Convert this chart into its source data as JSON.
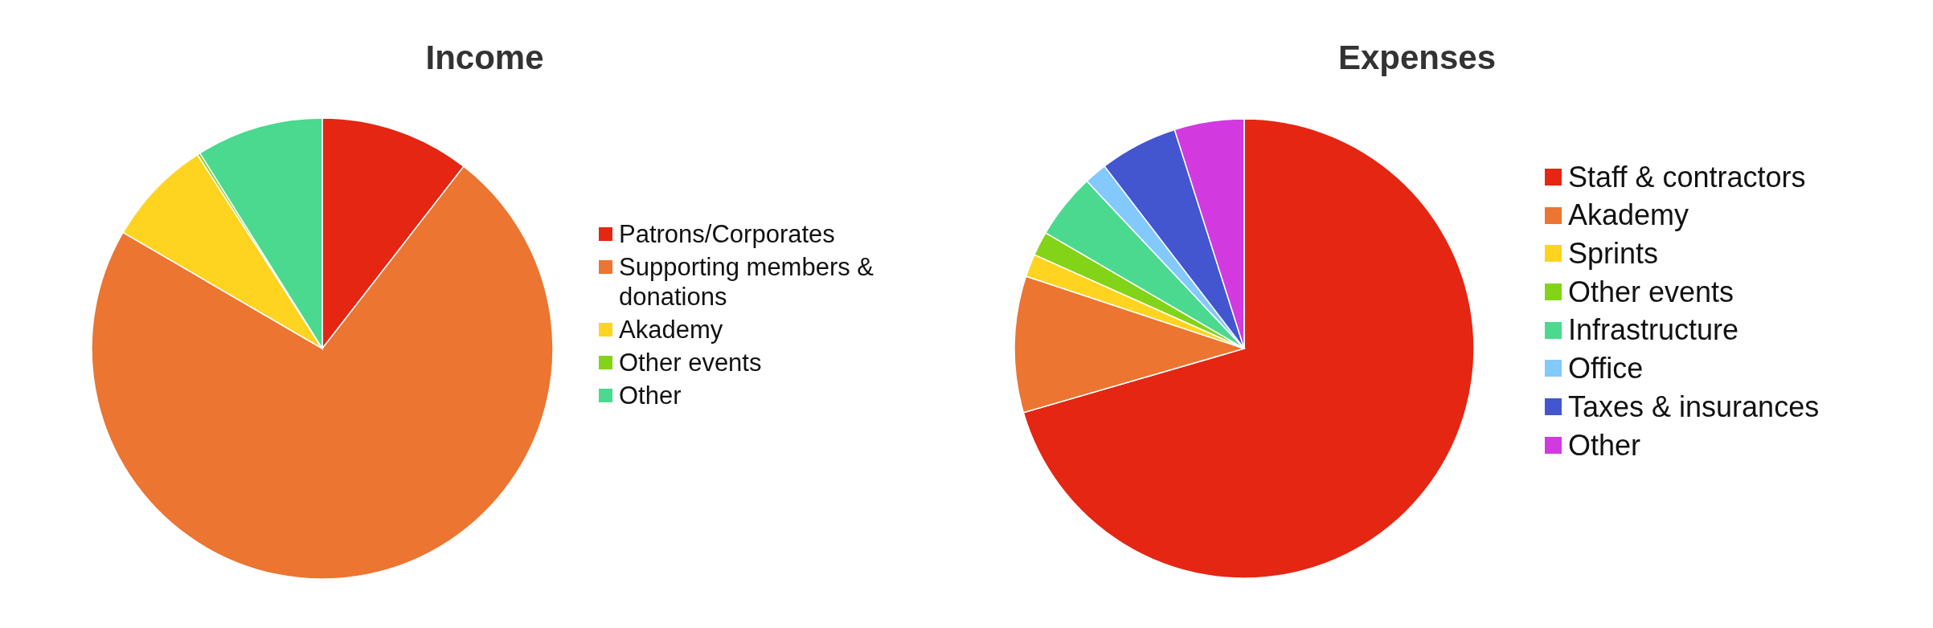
{
  "chart_data": [
    {
      "type": "pie",
      "title": "Income",
      "categories": [
        "Patrons/Corporates",
        "Supporting members & donations",
        "Akademy",
        "Other events",
        "Other"
      ],
      "values": [
        10.5,
        72.9,
        7.5,
        0.2,
        8.9
      ],
      "colors": [
        "#e42613",
        "#eb7531",
        "#fed421",
        "#83d418",
        "#4ad98e"
      ],
      "legend": "right"
    },
    {
      "type": "pie",
      "title": "Expenses",
      "categories": [
        "Staff & contractors",
        "Akademy",
        "Sprints",
        "Other events",
        "Infrastructure",
        "Office",
        "Taxes & insurances",
        "Other"
      ],
      "values": [
        70.5,
        9.6,
        1.6,
        1.7,
        4.6,
        1.6,
        5.5,
        4.9
      ],
      "colors": [
        "#e42613",
        "#eb7531",
        "#fed421",
        "#83d418",
        "#4ad98e",
        "#83c9fe",
        "#4356d0",
        "#d23adf"
      ],
      "legend": "right"
    }
  ]
}
